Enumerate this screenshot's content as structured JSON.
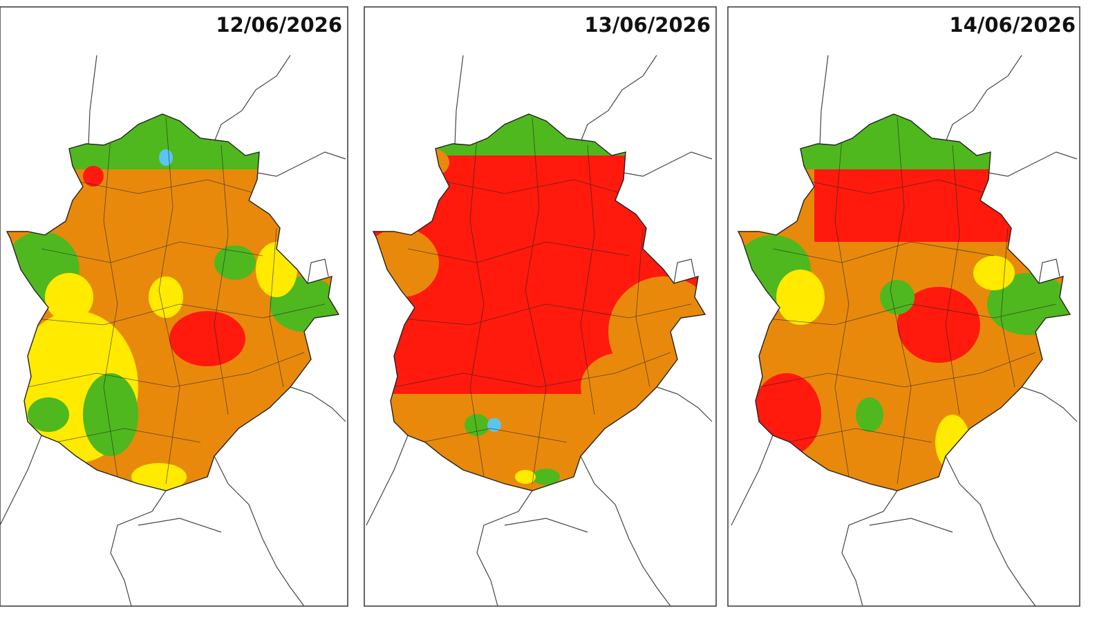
{
  "panels": [
    {
      "date": "12/06/2026"
    },
    {
      "date": "13/06/2026"
    },
    {
      "date": "14/06/2026"
    }
  ]
}
